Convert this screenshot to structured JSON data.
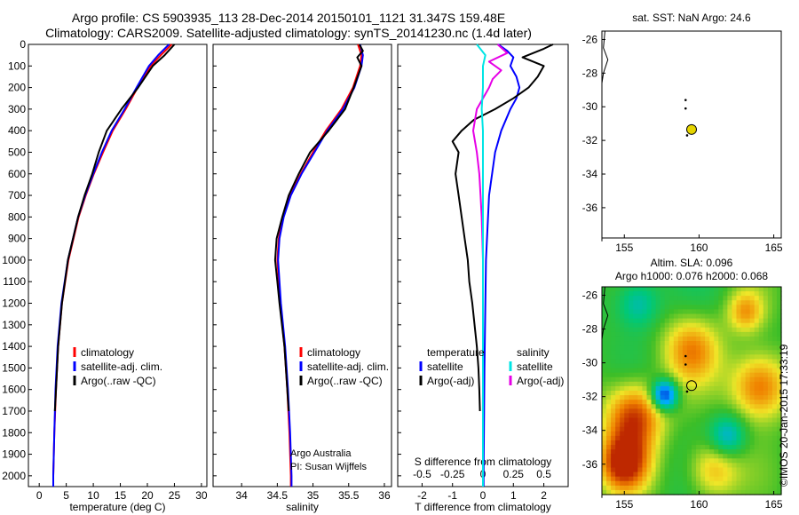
{
  "header": {
    "title_line1": "Argo profile: CS 5903935_113 28-Dec-2014 20150101_1121 31.347S 159.48E",
    "title_line2": "Climatology: CARS2009. Satellite-adjusted climatology: synTS_20141230.nc (1.4d later)"
  },
  "colors": {
    "climatology": "#ff0000",
    "satellite": "#0000ff",
    "argo": "#000000",
    "salinity_satellite": "#00e5e5",
    "salinity_argo": "#e600e6",
    "float_marker": "#e5d400"
  },
  "chart_data": [
    {
      "type": "line",
      "xlabel": "temperature (deg C)",
      "ylabel": "",
      "xlim": [
        -2,
        31
      ],
      "ylim": [
        2050,
        0
      ],
      "xticks": [
        "0",
        "5",
        "10",
        "15",
        "20",
        "25",
        "30"
      ],
      "yticks": [
        "0",
        "100",
        "200",
        "300",
        "400",
        "500",
        "600",
        "700",
        "800",
        "900",
        "1000",
        "1100",
        "1200",
        "1300",
        "1400",
        "1500",
        "1600",
        "1700",
        "1800",
        "1900",
        "2000"
      ],
      "legend": [
        "climatology",
        "satellite-adj. clim.",
        "Argo(..raw -QC)"
      ],
      "series": [
        {
          "name": "climatology",
          "depth": [
            0,
            50,
            100,
            200,
            300,
            400,
            500,
            600,
            700,
            800,
            1000,
            1200,
            1400,
            1600,
            1800,
            2000,
            2050
          ],
          "values": [
            24.5,
            22.5,
            20.6,
            18.2,
            16.0,
            13.6,
            11.8,
            10.1,
            8.6,
            7.3,
            5.4,
            4.2,
            3.5,
            3.1,
            2.8,
            2.6,
            2.6
          ]
        },
        {
          "name": "satellite-adj. clim.",
          "depth": [
            0,
            50,
            100,
            200,
            300,
            400,
            500,
            600,
            700,
            800,
            1000,
            1200,
            1400,
            1600,
            1800,
            2000,
            2050
          ],
          "values": [
            24.0,
            22.0,
            20.3,
            18.0,
            15.8,
            13.4,
            11.6,
            10.0,
            8.5,
            7.2,
            5.3,
            4.1,
            3.4,
            3.0,
            2.8,
            2.6,
            2.6
          ]
        },
        {
          "name": "Argo(..raw -QC)",
          "depth": [
            0,
            50,
            100,
            200,
            300,
            400,
            500,
            600,
            700,
            800,
            1000,
            1200,
            1400,
            1600,
            1700
          ],
          "values": [
            25.0,
            23.2,
            21.0,
            18.3,
            15.2,
            12.5,
            11.0,
            9.8,
            8.4,
            7.2,
            5.3,
            4.2,
            3.5,
            3.1,
            2.9
          ]
        }
      ]
    },
    {
      "type": "line",
      "xlabel": "salinity",
      "xlim": [
        33.6,
        36.1
      ],
      "ylim": [
        2050,
        0
      ],
      "xticks": [
        "34",
        "34.5",
        "35",
        "35.5",
        "36"
      ],
      "legend": [
        "climatology",
        "satellite-adj. clim.",
        "Argo(..raw -QC)"
      ],
      "series": [
        {
          "name": "climatology",
          "depth": [
            0,
            50,
            100,
            200,
            300,
            400,
            500,
            600,
            700,
            800,
            900,
            1000,
            1100,
            1200,
            1400,
            1600,
            1800,
            2000,
            2050
          ],
          "values": [
            35.63,
            35.68,
            35.66,
            35.56,
            35.4,
            35.18,
            35.0,
            34.83,
            34.68,
            34.58,
            34.52,
            34.5,
            34.52,
            34.54,
            34.6,
            34.64,
            34.67,
            34.69,
            34.69
          ]
        },
        {
          "name": "satellite-adj. clim.",
          "depth": [
            0,
            50,
            100,
            200,
            300,
            400,
            500,
            600,
            700,
            800,
            900,
            1000,
            1100,
            1200,
            1400,
            1600,
            1800,
            2000,
            2050
          ],
          "values": [
            35.66,
            35.7,
            35.68,
            35.58,
            35.42,
            35.2,
            35.02,
            34.84,
            34.69,
            34.59,
            34.53,
            34.51,
            34.53,
            34.55,
            34.61,
            34.65,
            34.68,
            34.7,
            34.7
          ]
        },
        {
          "name": "Argo(..raw -QC)",
          "depth": [
            0,
            30,
            60,
            100,
            200,
            300,
            400,
            500,
            600,
            700,
            800,
            900,
            1000,
            1100,
            1200,
            1400,
            1600,
            1700
          ],
          "values": [
            35.65,
            35.7,
            35.62,
            35.68,
            35.57,
            35.45,
            35.22,
            34.96,
            34.8,
            34.66,
            34.57,
            34.49,
            34.47,
            34.5,
            34.53,
            34.6,
            34.64,
            34.66
          ]
        }
      ]
    },
    {
      "type": "line",
      "xlabel": "T difference from climatology",
      "xlabel_top": "S difference from climatology",
      "xlim": [
        -2.8,
        2.8
      ],
      "ylim": [
        2050,
        0
      ],
      "xticks": [
        "-2",
        "-1",
        "0",
        "1",
        "2"
      ],
      "xticks_top": [
        "-0.5",
        "-0.25",
        "0",
        "0.25",
        "0.5"
      ],
      "legend": [
        "temperature",
        "satellite",
        "Argo(-adj)",
        "salinity",
        "satellite",
        "Argo(-adj)"
      ],
      "series": [
        {
          "name": "temperature satellite",
          "depth": [
            0,
            30,
            60,
            100,
            150,
            200,
            250,
            300,
            400,
            500,
            700,
            1000,
            1500,
            2000,
            2050
          ],
          "values": [
            0.5,
            0.8,
            1.0,
            0.9,
            1.1,
            1.2,
            1.1,
            0.9,
            0.6,
            0.4,
            0.2,
            0.1,
            0.05,
            0.02,
            0.02
          ]
        },
        {
          "name": "temperature Argo(-adj)",
          "depth": [
            0,
            20,
            60,
            100,
            150,
            200,
            250,
            300,
            350,
            400,
            450,
            500,
            600,
            700,
            800,
            900,
            1000,
            1100,
            1200,
            1400,
            1500,
            1600,
            1700
          ],
          "values": [
            2.3,
            2.0,
            1.3,
            2.0,
            1.8,
            1.5,
            1.0,
            0.4,
            -0.3,
            -0.7,
            -1.0,
            -0.8,
            -0.9,
            -0.8,
            -0.7,
            -0.6,
            -0.5,
            -0.45,
            -0.35,
            -0.2,
            -0.15,
            -0.12,
            -0.1
          ]
        },
        {
          "name": "salinity satellite",
          "depth": [
            0,
            50,
            100,
            200,
            300,
            400,
            500,
            700,
            1000,
            1500,
            2000,
            2050
          ],
          "values": [
            -0.05,
            0.02,
            0.0,
            0.0,
            -0.01,
            0.0,
            0.0,
            0.0,
            0.0,
            0.0,
            0.0,
            0.0
          ]
        },
        {
          "name": "salinity Argo(-adj)",
          "depth": [
            0,
            40,
            80,
            120,
            160,
            200,
            300,
            400,
            500,
            600,
            700,
            800,
            1000,
            1200,
            1500,
            1700
          ],
          "values": [
            0.12,
            0.2,
            0.05,
            0.15,
            0.08,
            0.05,
            -0.05,
            -0.08,
            -0.05,
            -0.03,
            -0.02,
            -0.01,
            0.0,
            0.0,
            0.0,
            0.0
          ]
        }
      ]
    },
    {
      "type": "scatter",
      "title": "sat. SST: NaN Argo: 24.6",
      "xlim": [
        153.5,
        165.5
      ],
      "ylim": [
        -37.8,
        -25.5
      ],
      "xticks": [
        "155",
        "160",
        "165"
      ],
      "yticks": [
        "-26",
        "-28",
        "-30",
        "-32",
        "-34",
        "-36"
      ],
      "points": [
        {
          "lon": 159.5,
          "lat": -31.35
        },
        {
          "lon": 159.1,
          "lat": -29.6
        },
        {
          "lon": 159.1,
          "lat": -30.1
        },
        {
          "lon": 159.2,
          "lat": -31.7
        }
      ]
    },
    {
      "type": "heatmap",
      "title_line1": "Altim. SLA: 0.096",
      "title_line2": "Argo h1000: 0.076 h2000: 0.068",
      "xlim": [
        153.5,
        165.5
      ],
      "ylim": [
        -37.8,
        -25.5
      ],
      "xticks": [
        "155",
        "160",
        "165"
      ],
      "yticks": [
        "-26",
        "-28",
        "-30",
        "-32",
        "-34",
        "-36"
      ]
    }
  ],
  "annotations": {
    "argo_australia": "Argo Australia",
    "pi": "PI: Susan Wijffels",
    "imos_stamp": "©IMOS 20-Jan-2015 17:33:19"
  }
}
